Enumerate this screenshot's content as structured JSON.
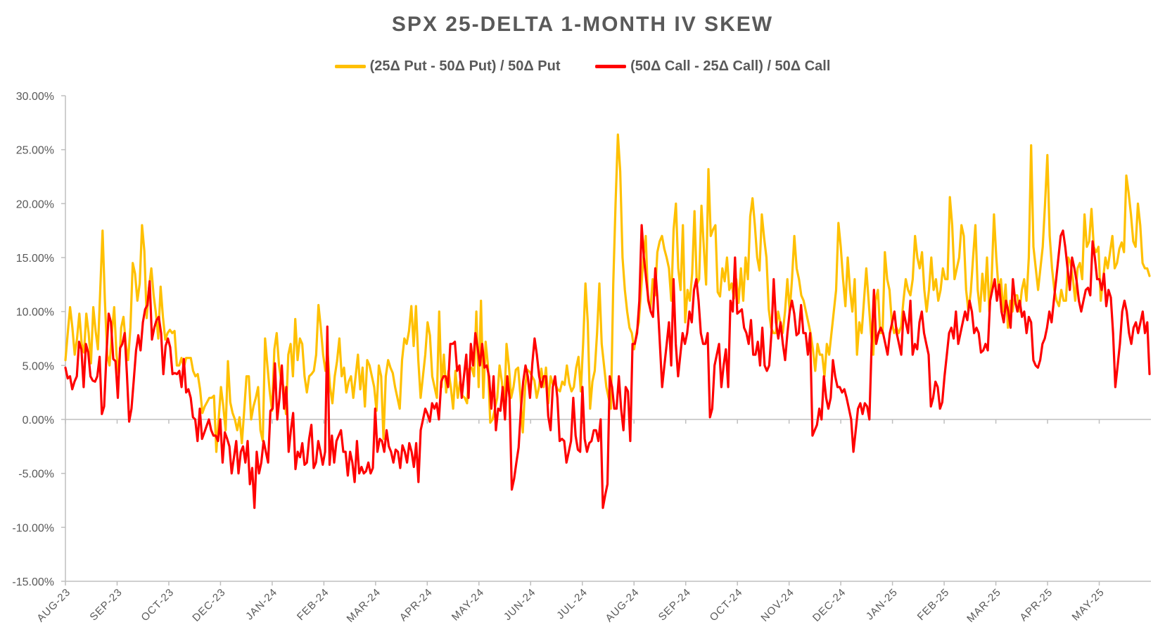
{
  "chart_data": {
    "type": "line",
    "title": "SPX 25-DELTA 1-MONTH IV SKEW",
    "xlabel": "",
    "ylabel": "",
    "ylim": [
      -0.15,
      0.3
    ],
    "yticks": [
      -0.15,
      -0.1,
      -0.05,
      0.0,
      0.05,
      0.1,
      0.15,
      0.2,
      0.25,
      0.3
    ],
    "ytick_labels": [
      "-15.00%",
      "-10.00%",
      "-5.00%",
      "0.00%",
      "5.00%",
      "10.00%",
      "15.00%",
      "20.00%",
      "25.00%",
      "30.00%"
    ],
    "xtick_labels": [
      "AUG-23",
      "SEP-23",
      "OCT-23",
      "DEC-23",
      "JAN-24",
      "FEB-24",
      "MAR-24",
      "APR-24",
      "MAY-24",
      "JUN-24",
      "JUL-24",
      "AUG-24",
      "SEP-24",
      "OCT-24",
      "NOV-24",
      "DEC-24",
      "JAN-25",
      "FEB-25",
      "MAR-25",
      "APR-25",
      "MAY-25"
    ],
    "legend_position": "top",
    "grid": false,
    "series": [
      {
        "name": "(25Δ Put - 50Δ Put) / 50Δ Put",
        "color": "#FFC000",
        "values": [
          0.055,
          0.08,
          0.104,
          0.085,
          0.06,
          0.075,
          0.098,
          0.07,
          0.062,
          0.098,
          0.08,
          0.052,
          0.104,
          0.082,
          0.065,
          0.12,
          0.175,
          0.11,
          0.06,
          0.05,
          0.08,
          0.104,
          0.06,
          0.042,
          0.085,
          0.095,
          0.07,
          0.055,
          0.085,
          0.145,
          0.135,
          0.11,
          0.126,
          0.18,
          0.156,
          0.094,
          0.122,
          0.14,
          0.115,
          0.098,
          0.075,
          0.123,
          0.095,
          0.074,
          0.08,
          0.083,
          0.08,
          0.082,
          0.05,
          0.05,
          0.057,
          0.048,
          0.057,
          0.057,
          0.057,
          0.045,
          0.04,
          0.042,
          0.028,
          0.006,
          0.012,
          0.016,
          0.02,
          0.02,
          0.022,
          -0.03,
          0.0,
          0.03,
          0.012,
          -0.01,
          0.054,
          0.016,
          0.006,
          0.0,
          -0.01,
          0.002,
          -0.022,
          0.008,
          0.04,
          0.04,
          0.0,
          0.012,
          0.02,
          0.03,
          -0.01,
          -0.02,
          0.075,
          0.05,
          0.026,
          0.008,
          0.065,
          0.08,
          0.05,
          0.036,
          0.03,
          0.005,
          0.06,
          0.07,
          0.04,
          0.093,
          0.055,
          0.075,
          0.07,
          0.04,
          0.025,
          0.04,
          0.042,
          0.045,
          0.06,
          0.106,
          0.085,
          0.06,
          0.045,
          0.06,
          0.03,
          0.015,
          0.04,
          0.054,
          0.075,
          0.04,
          0.048,
          0.025,
          0.035,
          0.04,
          0.02,
          0.04,
          0.06,
          0.028,
          0.048,
          0.012,
          0.055,
          0.05,
          0.04,
          0.03,
          0.008,
          0.05,
          0.04,
          -0.018,
          0.04,
          0.055,
          0.048,
          0.043,
          0.03,
          0.02,
          0.01,
          0.055,
          0.075,
          0.07,
          0.082,
          0.105,
          0.068,
          0.105,
          0.055,
          0.02,
          0.04,
          0.06,
          0.09,
          0.078,
          0.04,
          0.03,
          0.02,
          0.1,
          0.03,
          0.06,
          0.025,
          0.045,
          0.03,
          0.01,
          0.045,
          0.02,
          0.035,
          0.022,
          0.02,
          0.015,
          0.047,
          0.048,
          0.04,
          0.1,
          0.03,
          0.11,
          0.02,
          0.072,
          0.05,
          -0.003,
          0.0,
          0.01,
          0.02,
          0.05,
          0.035,
          0.01,
          0.07,
          0.05,
          0.02,
          0.03,
          0.046,
          0.048,
          0.022,
          -0.012,
          0.03,
          0.046,
          0.044,
          0.04,
          0.036,
          0.02,
          0.03,
          0.047,
          0.03,
          0.048,
          0.015,
          0.04,
          0.032,
          0.033,
          0.028,
          0.026,
          0.035,
          0.032,
          0.05,
          0.034,
          0.026,
          0.03,
          0.048,
          0.058,
          0.026,
          0.07,
          0.126,
          0.09,
          0.01,
          0.035,
          0.045,
          0.08,
          0.126,
          0.07,
          0.05,
          0.03,
          0.02,
          0.01,
          0.125,
          0.2,
          0.264,
          0.23,
          0.15,
          0.12,
          0.1,
          0.085,
          0.08,
          0.065,
          0.08,
          0.09,
          0.12,
          0.15,
          0.17,
          0.11,
          0.102,
          0.13,
          0.115,
          0.155,
          0.165,
          0.17,
          0.158,
          0.15,
          0.14,
          0.11,
          0.176,
          0.2,
          0.14,
          0.12,
          0.18,
          0.09,
          0.12,
          0.11,
          0.135,
          0.193,
          0.125,
          0.13,
          0.198,
          0.16,
          0.125,
          0.232,
          0.17,
          0.176,
          0.18,
          0.118,
          0.114,
          0.14,
          0.128,
          0.15,
          0.12,
          0.126,
          0.112,
          0.13,
          0.108,
          0.14,
          0.11,
          0.15,
          0.13,
          0.188,
          0.205,
          0.18,
          0.15,
          0.138,
          0.19,
          0.168,
          0.15,
          0.102,
          0.085,
          0.08,
          0.08,
          0.1,
          0.09,
          0.08,
          0.1,
          0.13,
          0.1,
          0.13,
          0.17,
          0.14,
          0.13,
          0.115,
          0.11,
          0.1,
          0.09,
          0.08,
          0.065,
          0.045,
          0.07,
          0.06,
          0.06,
          0.04,
          0.07,
          0.06,
          0.08,
          0.1,
          0.12,
          0.182,
          0.16,
          0.13,
          0.105,
          0.15,
          0.12,
          0.1,
          0.13,
          0.06,
          0.09,
          0.08,
          0.11,
          0.14,
          0.11,
          0.08,
          0.06,
          0.11,
          0.12,
          0.08,
          0.08,
          0.155,
          0.13,
          0.12,
          0.09,
          0.08,
          0.085,
          0.08,
          0.086,
          0.11,
          0.13,
          0.12,
          0.115,
          0.13,
          0.17,
          0.15,
          0.14,
          0.155,
          0.12,
          0.1,
          0.12,
          0.15,
          0.12,
          0.13,
          0.11,
          0.12,
          0.14,
          0.13,
          0.13,
          0.206,
          0.18,
          0.13,
          0.14,
          0.15,
          0.18,
          0.17,
          0.12,
          0.1,
          0.118,
          0.15,
          0.18,
          0.12,
          0.1,
          0.135,
          0.11,
          0.15,
          0.1,
          0.13,
          0.19,
          0.15,
          0.12,
          0.13,
          0.1,
          0.125,
          0.085,
          0.11,
          0.1,
          0.115,
          0.115,
          0.1,
          0.12,
          0.13,
          0.11,
          0.15,
          0.254,
          0.16,
          0.14,
          0.12,
          0.14,
          0.16,
          0.2,
          0.245,
          0.17,
          0.14,
          0.12,
          0.11,
          0.105,
          0.12,
          0.11,
          0.11,
          0.15,
          0.145,
          0.13,
          0.11,
          0.14,
          0.145,
          0.13,
          0.19,
          0.16,
          0.165,
          0.195,
          0.16,
          0.155,
          0.16,
          0.11,
          0.13,
          0.15,
          0.14,
          0.155,
          0.17,
          0.14,
          0.145,
          0.158,
          0.164,
          0.155,
          0.226,
          0.21,
          0.19,
          0.165,
          0.16,
          0.2,
          0.18,
          0.145,
          0.14,
          0.14,
          0.133
        ]
      },
      {
        "name": "(50Δ Call - 25Δ Call) / 50Δ Call",
        "color": "#FF0000",
        "values": [
          0.048,
          0.038,
          0.04,
          0.028,
          0.035,
          0.04,
          0.072,
          0.065,
          0.03,
          0.07,
          0.062,
          0.04,
          0.036,
          0.035,
          0.04,
          0.058,
          0.005,
          0.012,
          0.06,
          0.098,
          0.09,
          0.056,
          0.054,
          0.02,
          0.066,
          0.07,
          0.08,
          0.042,
          -0.002,
          0.01,
          0.036,
          0.064,
          0.078,
          0.064,
          0.09,
          0.102,
          0.106,
          0.128,
          0.074,
          0.085,
          0.092,
          0.095,
          0.08,
          0.042,
          0.068,
          0.075,
          0.067,
          0.042,
          0.043,
          0.042,
          0.045,
          0.03,
          0.056,
          0.025,
          0.028,
          0.02,
          0.002,
          0.0,
          -0.02,
          0.01,
          -0.018,
          -0.012,
          -0.006,
          0.0,
          -0.01,
          -0.015,
          -0.015,
          -0.02,
          0.0,
          -0.04,
          -0.012,
          -0.018,
          -0.025,
          -0.05,
          -0.035,
          -0.02,
          -0.05,
          -0.03,
          -0.025,
          -0.04,
          -0.02,
          -0.06,
          -0.045,
          -0.082,
          -0.03,
          -0.05,
          -0.04,
          -0.02,
          -0.03,
          -0.04,
          0.008,
          0.01,
          0.052,
          0.0,
          0.02,
          0.05,
          0.01,
          0.03,
          -0.03,
          -0.01,
          0.006,
          -0.046,
          -0.03,
          -0.035,
          -0.022,
          -0.042,
          -0.04,
          -0.018,
          -0.005,
          -0.045,
          -0.04,
          -0.02,
          -0.03,
          -0.042,
          -0.03,
          0.086,
          -0.042,
          -0.015,
          -0.04,
          -0.02,
          -0.015,
          -0.01,
          -0.03,
          -0.03,
          -0.052,
          -0.03,
          -0.04,
          -0.058,
          -0.02,
          -0.05,
          -0.044,
          -0.05,
          -0.048,
          -0.04,
          -0.05,
          -0.045,
          0.01,
          -0.03,
          -0.018,
          -0.02,
          -0.03,
          -0.01,
          -0.025,
          -0.03,
          -0.04,
          -0.028,
          -0.03,
          -0.045,
          -0.024,
          -0.03,
          -0.04,
          -0.022,
          -0.03,
          -0.044,
          -0.022,
          -0.058,
          -0.01,
          0.0,
          0.01,
          0.005,
          -0.002,
          0.015,
          0.01,
          0.015,
          0.0,
          0.035,
          0.04,
          0.04,
          0.03,
          0.07,
          0.07,
          0.072,
          0.045,
          0.05,
          0.02,
          0.04,
          0.06,
          0.02,
          0.07,
          0.05,
          0.08,
          0.066,
          0.05,
          0.07,
          0.048,
          0.05,
          0.04,
          0.01,
          0.04,
          -0.01,
          0.01,
          0.008,
          0.03,
          0.0,
          0.04,
          0.02,
          -0.065,
          -0.055,
          -0.04,
          -0.026,
          0.01,
          0.035,
          0.05,
          0.04,
          0.02,
          0.052,
          0.075,
          0.06,
          0.04,
          0.03,
          0.04,
          0.04,
          0.003,
          -0.01,
          0.03,
          0.04,
          0.02,
          -0.02,
          -0.018,
          -0.02,
          -0.04,
          -0.03,
          -0.02,
          0.02,
          -0.015,
          -0.028,
          -0.03,
          0.03,
          -0.018,
          -0.03,
          -0.022,
          -0.02,
          -0.01,
          -0.01,
          -0.02,
          0.0,
          -0.082,
          -0.07,
          -0.06,
          0.04,
          0.03,
          0.01,
          0.01,
          0.04,
          0.01,
          -0.01,
          0.03,
          0.026,
          -0.02,
          0.07,
          0.07,
          0.08,
          0.11,
          0.18,
          0.15,
          0.13,
          0.11,
          0.1,
          0.095,
          0.14,
          0.11,
          0.07,
          0.03,
          0.05,
          0.07,
          0.09,
          0.05,
          0.13,
          0.07,
          0.04,
          0.06,
          0.08,
          0.07,
          0.08,
          0.1,
          0.09,
          0.12,
          0.13,
          0.11,
          0.08,
          0.07,
          0.07,
          0.08,
          0.002,
          0.01,
          0.05,
          0.06,
          0.07,
          0.03,
          0.05,
          0.065,
          0.03,
          0.11,
          0.1,
          0.15,
          0.098,
          0.1,
          0.102,
          0.085,
          0.08,
          0.07,
          0.092,
          0.06,
          0.06,
          0.072,
          0.05,
          0.085,
          0.05,
          0.045,
          0.05,
          0.08,
          0.13,
          0.09,
          0.075,
          0.09,
          0.07,
          0.055,
          0.08,
          0.1,
          0.11,
          0.098,
          0.078,
          0.08,
          0.106,
          0.08,
          0.08,
          0.06,
          0.08,
          -0.015,
          -0.01,
          -0.005,
          0.01,
          0.0,
          0.04,
          0.02,
          0.01,
          0.02,
          0.055,
          0.04,
          0.03,
          0.03,
          0.025,
          0.028,
          0.02,
          0.01,
          0.0,
          -0.03,
          -0.01,
          0.01,
          0.015,
          0.005,
          0.015,
          0.012,
          0.0,
          0.07,
          0.12,
          0.07,
          0.08,
          0.085,
          0.08,
          0.07,
          0.06,
          0.08,
          0.09,
          0.1,
          0.08,
          0.07,
          0.06,
          0.1,
          0.09,
          0.08,
          0.11,
          0.06,
          0.07,
          0.065,
          0.09,
          0.1,
          0.08,
          0.07,
          0.06,
          0.012,
          0.02,
          0.035,
          0.03,
          0.01,
          0.016,
          0.04,
          0.06,
          0.08,
          0.085,
          0.075,
          0.1,
          0.07,
          0.08,
          0.09,
          0.1,
          0.092,
          0.11,
          0.1,
          0.08,
          0.085,
          0.08,
          0.062,
          0.064,
          0.07,
          0.064,
          0.11,
          0.12,
          0.13,
          0.11,
          0.125,
          0.1,
          0.09,
          0.11,
          0.1,
          0.085,
          0.13,
          0.11,
          0.1,
          0.11,
          0.095,
          0.1,
          0.08,
          0.095,
          0.09,
          0.055,
          0.05,
          0.048,
          0.055,
          0.07,
          0.075,
          0.085,
          0.1,
          0.09,
          0.11,
          0.13,
          0.15,
          0.17,
          0.175,
          0.16,
          0.14,
          0.12,
          0.15,
          0.14,
          0.128,
          0.11,
          0.1,
          0.11,
          0.12,
          0.122,
          0.115,
          0.165,
          0.15,
          0.13,
          0.13,
          0.12,
          0.135,
          0.105,
          0.12,
          0.113,
          0.08,
          0.03,
          0.05,
          0.07,
          0.1,
          0.11,
          0.1,
          0.08,
          0.07,
          0.085,
          0.09,
          0.08,
          0.09,
          0.1,
          0.08,
          0.09,
          0.042
        ]
      }
    ]
  }
}
